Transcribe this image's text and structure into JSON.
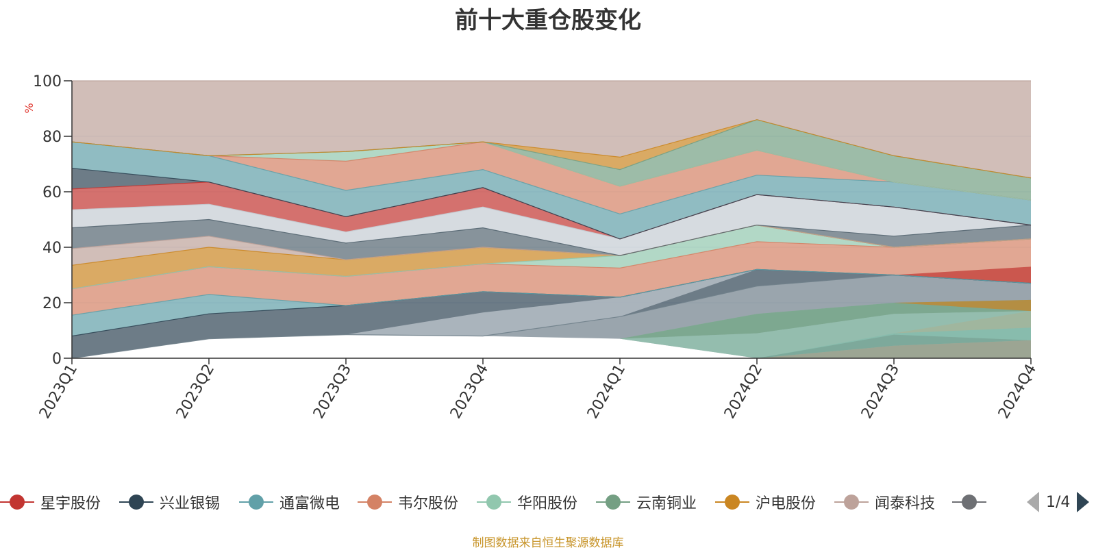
{
  "title": "前十大重仓股变化",
  "source_note": "制图数据来自恒生聚源数据库",
  "legend_pager": "1/4",
  "colors": {
    "title": "#333333",
    "ylabel": "#e0342c",
    "source": "#c8952b",
    "pager_active": "#2f4554",
    "pager_inactive": "#aaaaaa"
  },
  "chart_data": {
    "type": "area",
    "stacked": true,
    "title": "前十大重仓股变化",
    "xlabel": "",
    "ylabel": "%",
    "ylim": [
      0,
      100
    ],
    "yticks": [
      0,
      20,
      40,
      60,
      80,
      100
    ],
    "grid": true,
    "x": [
      "2023Q1",
      "2023Q2",
      "2023Q3",
      "2023Q4",
      "2024Q1",
      "2024Q2",
      "2024Q3",
      "2024Q4"
    ],
    "legend_position": "bottom",
    "layers": [
      {
        "color": "#6f7f8a",
        "lower": [
          0,
          7,
          8.5,
          8,
          7,
          0,
          0,
          0
        ],
        "upper": [
          0,
          7,
          8.5,
          8,
          15,
          26,
          30,
          27
        ]
      },
      {
        "color": "#2f4554",
        "lower": [
          0,
          7,
          8.5,
          8,
          15,
          26,
          30,
          27
        ],
        "upper": [
          8,
          16,
          19,
          24,
          22,
          32,
          30,
          27
        ]
      },
      {
        "color": "#61a0a8",
        "lower": [
          8,
          16,
          19,
          24,
          22,
          32,
          30,
          27
        ],
        "upper": [
          15.5,
          23,
          19,
          24,
          22,
          32,
          30,
          27
        ]
      },
      {
        "color": "#d48265",
        "lower": [
          15.5,
          23,
          19,
          24,
          22,
          32,
          30,
          27
        ],
        "upper": [
          25,
          33,
          29.5,
          34,
          32.5,
          42,
          40,
          43
        ]
      },
      {
        "color": "#91c7ae",
        "lower": [
          25,
          33,
          29.5,
          34,
          32.5,
          42,
          40,
          43
        ],
        "upper": [
          25,
          33,
          29.5,
          34,
          37,
          48,
          40,
          43
        ]
      },
      {
        "color": "#ca8622",
        "lower": [
          25,
          33,
          29.5,
          34,
          37,
          48,
          40,
          43
        ],
        "upper": [
          33.5,
          40,
          35.5,
          40,
          37,
          48,
          40,
          43
        ]
      },
      {
        "color": "#bda29a",
        "lower": [
          33.5,
          40,
          35.5,
          40,
          37,
          48,
          40,
          43
        ],
        "upper": [
          39.5,
          44,
          35.5,
          40,
          37,
          48,
          40,
          43
        ]
      },
      {
        "color": "#546570",
        "lower": [
          39.5,
          44,
          35.5,
          40,
          37,
          48,
          40,
          43
        ],
        "upper": [
          47,
          50,
          41.5,
          47,
          37,
          48,
          44,
          48
        ]
      },
      {
        "color": "#c4ccd3",
        "lower": [
          47,
          50,
          41.5,
          47,
          37,
          48,
          44,
          48
        ],
        "upper": [
          53.5,
          55.5,
          45.5,
          54.5,
          43,
          59,
          54.5,
          48
        ]
      },
      {
        "color": "#c23531",
        "lower": [
          53.5,
          55.5,
          45.5,
          54.5,
          43,
          59,
          54.5,
          48
        ],
        "upper": [
          61,
          63.5,
          51,
          61.5,
          43,
          59,
          54.5,
          48
        ]
      },
      {
        "color": "#2f4554",
        "lower": [
          61,
          63.5,
          51,
          61.5,
          43,
          59,
          54.5,
          48
        ],
        "upper": [
          68.5,
          63.5,
          51,
          61.5,
          43,
          59,
          54.5,
          48
        ]
      },
      {
        "color": "#61a0a8",
        "lower": [
          68.5,
          63.5,
          51,
          61.5,
          43,
          59,
          54.5,
          48
        ],
        "upper": [
          78,
          73,
          60.5,
          68,
          52,
          66,
          63.5,
          57
        ]
      },
      {
        "color": "#d48265",
        "lower": [
          78,
          73,
          60.5,
          68,
          52,
          66,
          63.5,
          57
        ],
        "upper": [
          78,
          73,
          71,
          78,
          62,
          75,
          63.5,
          57
        ]
      },
      {
        "color": "#91c7ae",
        "lower": [
          78,
          73,
          71,
          78,
          62,
          75,
          63.5,
          57
        ],
        "upper": [
          78,
          73,
          74.5,
          78,
          62,
          75,
          63.5,
          57
        ]
      },
      {
        "color": "#749f83",
        "lower": [
          78,
          73,
          74.5,
          78,
          62,
          75,
          63.5,
          57
        ],
        "upper": [
          78,
          73,
          74.5,
          78,
          68,
          86,
          73,
          65
        ]
      },
      {
        "color": "#ca8622",
        "lower": [
          78,
          73,
          74.5,
          78,
          68,
          86,
          73,
          65
        ],
        "upper": [
          78,
          73,
          74.5,
          78,
          72.5,
          86,
          73,
          65
        ]
      },
      {
        "color": "#bda29a",
        "lower": [
          78,
          73,
          74.5,
          78,
          72.5,
          86,
          73,
          65
        ],
        "upper": [
          100,
          100,
          100,
          100,
          100,
          100,
          100,
          100
        ]
      }
    ],
    "overlays": [
      {
        "color": "#91c7ae",
        "lower": [
          0,
          0,
          0,
          0,
          7,
          9,
          16,
          17
        ],
        "upper": [
          0,
          0,
          0,
          0,
          7,
          16,
          20,
          17
        ]
      },
      {
        "color": "#749f83",
        "lower": [
          0,
          0,
          0,
          0,
          7,
          9,
          16,
          17
        ],
        "upper": [
          0,
          0,
          0,
          0,
          7,
          16,
          20,
          21
        ]
      },
      {
        "color": "#ca8622",
        "lower": [
          0,
          0,
          0,
          0,
          0,
          0,
          20,
          17
        ],
        "upper": [
          0,
          0,
          0,
          0,
          0,
          0,
          20,
          21
        ]
      },
      {
        "color": "#d48265",
        "lower": [
          0,
          0,
          0,
          0,
          0,
          0,
          9,
          11
        ],
        "upper": [
          0,
          0,
          0,
          0,
          0,
          0,
          9,
          17
        ]
      },
      {
        "color": "#61a0a8",
        "lower": [
          0,
          0,
          0,
          0,
          0,
          0,
          8.5,
          6.5
        ],
        "upper": [
          0,
          0,
          0,
          0,
          0,
          0,
          9,
          11
        ]
      },
      {
        "color": "#2f4554",
        "lower": [
          0,
          0,
          0,
          0,
          0,
          0,
          4.5,
          6.5
        ],
        "upper": [
          0,
          0,
          0,
          0,
          0,
          0,
          8.5,
          6.5
        ]
      },
      {
        "color": "#c23531",
        "lower": [
          0,
          0,
          0,
          0,
          0,
          0,
          0,
          0
        ],
        "upper": [
          0,
          0,
          0,
          0,
          0,
          0,
          4.5,
          6.5
        ]
      },
      {
        "color": "#91c7ae",
        "lower": [
          0,
          0,
          0,
          8,
          7,
          0,
          0,
          0
        ],
        "upper": [
          0,
          0,
          0,
          8,
          7,
          9,
          16,
          17
        ]
      },
      {
        "color": "#c4ccd3",
        "lower": [
          0,
          0,
          8.5,
          8,
          15,
          32,
          30,
          27
        ],
        "upper": [
          0,
          0,
          8.5,
          16.5,
          22,
          32,
          30,
          27
        ]
      },
      {
        "color": "#c23531",
        "lower": [
          0,
          0,
          0,
          0,
          0,
          0,
          30,
          27
        ],
        "upper": [
          0,
          0,
          0,
          0,
          0,
          0,
          30,
          33
        ]
      }
    ],
    "legend": [
      {
        "name": "星宇股份",
        "color": "#c23531"
      },
      {
        "name": "兴业银锡",
        "color": "#2f4554"
      },
      {
        "name": "通富微电",
        "color": "#61a0a8"
      },
      {
        "name": "韦尔股份",
        "color": "#d48265"
      },
      {
        "name": "华阳股份",
        "color": "#91c7ae"
      },
      {
        "name": "云南铜业",
        "color": "#749f83"
      },
      {
        "name": "沪电股份",
        "color": "#ca8622"
      },
      {
        "name": "闻泰科技",
        "color": "#bda29a"
      },
      {
        "name": "",
        "color": "#6e7074"
      }
    ]
  }
}
